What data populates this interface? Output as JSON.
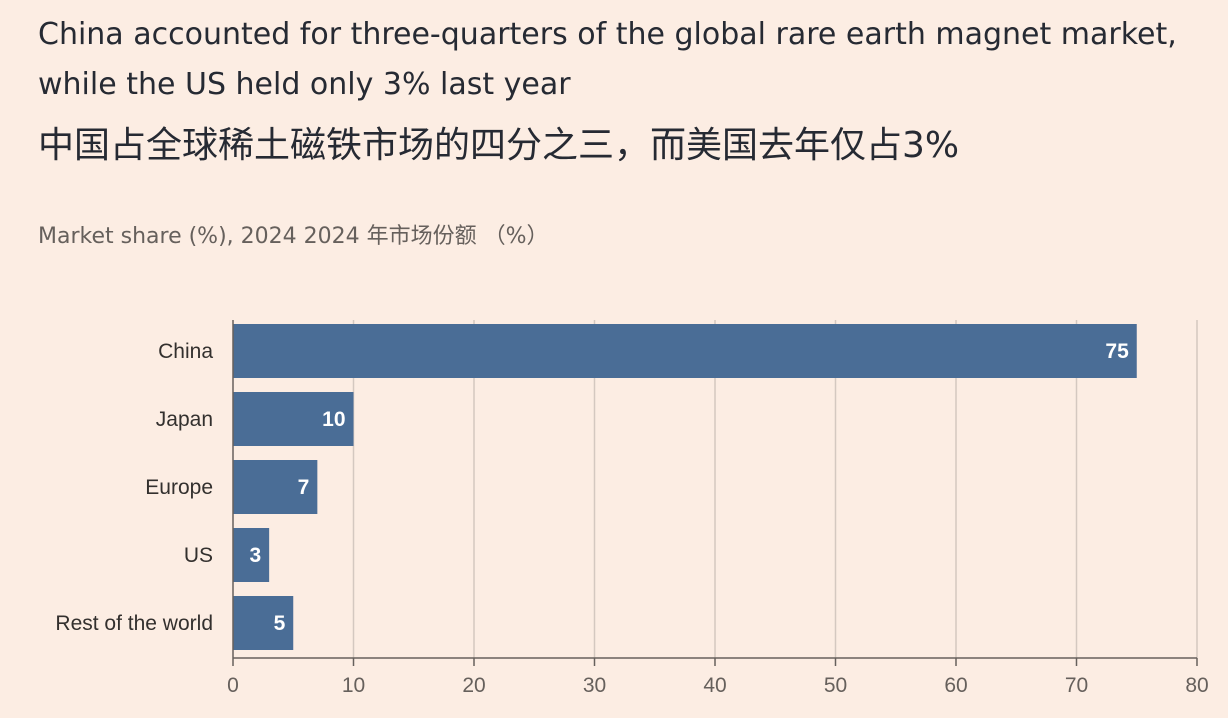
{
  "header": {
    "title_en": "China accounted for three-quarters of the global rare earth magnet market, while the US held only 3% last year",
    "title_zh": "中国占全球稀土磁铁市场的四分之三，而美国去年仅占3%",
    "subtitle": "Market share (%), 2024  2024 年市场份额 （%）"
  },
  "colors": {
    "background": "#fcede3",
    "bar": "#4a6d96",
    "grid": "#d4c8c0",
    "axis": "#66605c"
  },
  "chart_data": {
    "type": "bar",
    "orientation": "horizontal",
    "categories": [
      "China",
      "Japan",
      "Europe",
      "US",
      "Rest of the world"
    ],
    "values": [
      75,
      10,
      7,
      3,
      5
    ],
    "value_labels": [
      "75",
      "10",
      "7",
      "3",
      "5"
    ],
    "xlim": [
      0,
      80
    ],
    "xticks": [
      0,
      10,
      20,
      30,
      40,
      50,
      60,
      70,
      80
    ],
    "xtick_labels": [
      "0",
      "10",
      "20",
      "30",
      "40",
      "50",
      "60",
      "70",
      "80"
    ],
    "grid": true
  }
}
